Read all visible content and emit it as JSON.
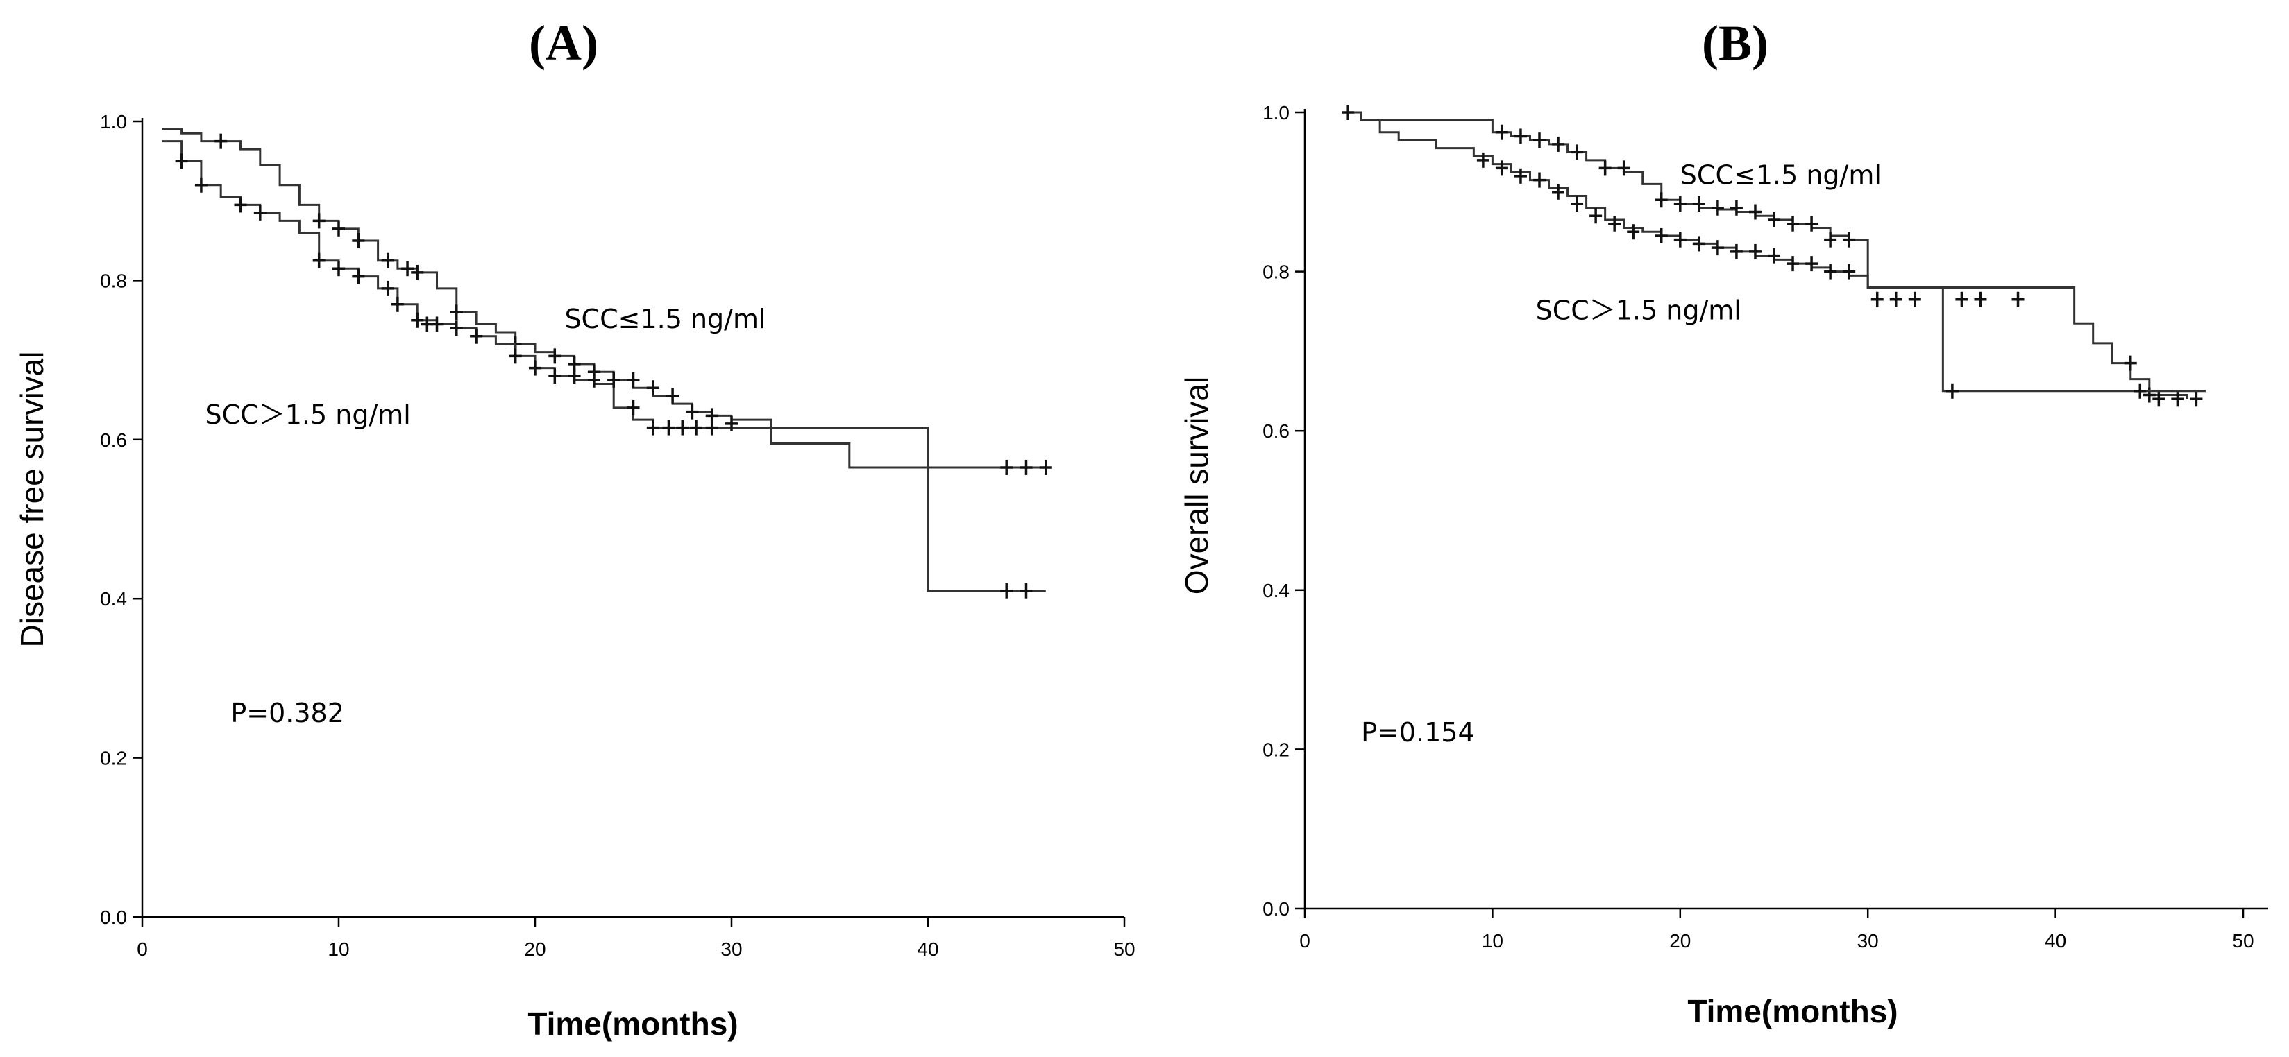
{
  "chart_data": [
    {
      "type": "line",
      "panel_label": "(A)",
      "xlabel": "Time(months)",
      "ylabel": "Disease free survival",
      "xlim": [
        0,
        50
      ],
      "ylim": [
        0,
        1.0
      ],
      "xticks": [
        0,
        10,
        20,
        30,
        40,
        50
      ],
      "yticks": [
        0.0,
        0.2,
        0.4,
        0.6,
        0.8,
        1.0
      ],
      "xtick_labels": [
        "0",
        "10",
        "20",
        "30",
        "40",
        "50"
      ],
      "ytick_labels": [
        "0.0",
        "0.2",
        "0.4",
        "0.6",
        "0.8",
        "1.0"
      ],
      "grid": false,
      "annotations": [
        {
          "text": "SCC≤1.5 ng/ml",
          "x": 21.5,
          "y": 0.74
        },
        {
          "text": "SCC＞1.5 ng/ml",
          "x": 3.2,
          "y": 0.62
        },
        {
          "text": "P=0.382",
          "x": 4.5,
          "y": 0.245
        }
      ],
      "series": [
        {
          "x": [
            1,
            2,
            3,
            5,
            6,
            7,
            8,
            9,
            10,
            11,
            12,
            13,
            14,
            15,
            16,
            17,
            18,
            19,
            20,
            21,
            22,
            23,
            24,
            25,
            26,
            27,
            28,
            29,
            30,
            32,
            36,
            40,
            46
          ],
          "y": [
            0.99,
            0.985,
            0.975,
            0.965,
            0.945,
            0.92,
            0.895,
            0.875,
            0.865,
            0.85,
            0.825,
            0.815,
            0.81,
            0.79,
            0.76,
            0.745,
            0.735,
            0.72,
            0.71,
            0.705,
            0.695,
            0.685,
            0.675,
            0.665,
            0.655,
            0.645,
            0.635,
            0.63,
            0.625,
            0.615,
            0.615,
            0.41,
            0.41
          ],
          "censored": [
            [
              4,
              0.975
            ],
            [
              9,
              0.875
            ],
            [
              10,
              0.865
            ],
            [
              11,
              0.85
            ],
            [
              12.5,
              0.825
            ],
            [
              13.5,
              0.815
            ],
            [
              14,
              0.81
            ],
            [
              16,
              0.76
            ],
            [
              19,
              0.72
            ],
            [
              21,
              0.705
            ],
            [
              22,
              0.695
            ],
            [
              23,
              0.685
            ],
            [
              24,
              0.675
            ],
            [
              25,
              0.675
            ],
            [
              26,
              0.665
            ],
            [
              27,
              0.655
            ],
            [
              28,
              0.635
            ],
            [
              29,
              0.63
            ],
            [
              44,
              0.41
            ],
            [
              45,
              0.41
            ]
          ]
        },
        {
          "x": [
            1,
            2,
            3,
            4,
            5,
            6,
            7,
            8,
            9,
            10,
            11,
            12,
            13,
            14,
            15,
            16,
            17,
            18,
            19,
            20,
            21,
            22,
            23,
            24,
            25,
            26,
            32,
            36,
            46
          ],
          "y": [
            0.975,
            0.95,
            0.92,
            0.905,
            0.895,
            0.885,
            0.875,
            0.86,
            0.825,
            0.815,
            0.805,
            0.79,
            0.77,
            0.75,
            0.745,
            0.74,
            0.73,
            0.72,
            0.705,
            0.69,
            0.68,
            0.675,
            0.67,
            0.64,
            0.625,
            0.615,
            0.595,
            0.565,
            0.565
          ],
          "censored": [
            [
              2,
              0.95
            ],
            [
              3,
              0.92
            ],
            [
              5,
              0.895
            ],
            [
              6,
              0.885
            ],
            [
              9,
              0.825
            ],
            [
              10,
              0.815
            ],
            [
              11,
              0.805
            ],
            [
              12.5,
              0.79
            ],
            [
              13,
              0.77
            ],
            [
              14,
              0.75
            ],
            [
              14.5,
              0.745
            ],
            [
              15,
              0.745
            ],
            [
              16,
              0.74
            ],
            [
              17,
              0.73
            ],
            [
              19,
              0.705
            ],
            [
              20,
              0.69
            ],
            [
              21,
              0.68
            ],
            [
              22,
              0.68
            ],
            [
              23,
              0.675
            ],
            [
              24,
              0.675
            ],
            [
              25,
              0.64
            ],
            [
              26,
              0.615
            ],
            [
              26.8,
              0.615
            ],
            [
              27.5,
              0.615
            ],
            [
              28.2,
              0.615
            ],
            [
              29,
              0.615
            ],
            [
              30,
              0.62
            ],
            [
              44,
              0.565
            ],
            [
              45,
              0.565
            ],
            [
              46,
              0.565
            ]
          ]
        }
      ]
    },
    {
      "type": "line",
      "panel_label": "(B)",
      "xlabel": "Time(months)",
      "ylabel": "Overall survival",
      "xlim": [
        0,
        50
      ],
      "ylim": [
        0,
        1.0
      ],
      "xticks": [
        0,
        10,
        20,
        30,
        40,
        50
      ],
      "yticks": [
        0.0,
        0.2,
        0.4,
        0.6,
        0.8,
        1.0
      ],
      "xtick_labels": [
        "0",
        "10",
        "20",
        "30",
        "40",
        "50"
      ],
      "ytick_labels": [
        "0.0",
        "0.2",
        "0.4",
        "0.6",
        "0.8",
        "1.0"
      ],
      "grid": false,
      "annotations": [
        {
          "text": "SCC≤1.5 ng/ml",
          "x": 20,
          "y": 0.91
        },
        {
          "text": "SCC＞1.5 ng/ml",
          "x": 12.3,
          "y": 0.74
        },
        {
          "text": "P=0.154",
          "x": 3,
          "y": 0.21
        }
      ],
      "series": [
        {
          "x": [
            2,
            3,
            10,
            11,
            12,
            13,
            14,
            15,
            16,
            17,
            18,
            19,
            20,
            21,
            22,
            23,
            24,
            25,
            26,
            27,
            28,
            29,
            30,
            41,
            42,
            43,
            44,
            45,
            47
          ],
          "y": [
            1.0,
            0.99,
            0.975,
            0.97,
            0.965,
            0.96,
            0.95,
            0.94,
            0.93,
            0.925,
            0.91,
            0.89,
            0.885,
            0.88,
            0.878,
            0.875,
            0.87,
            0.865,
            0.86,
            0.855,
            0.845,
            0.84,
            0.78,
            0.735,
            0.71,
            0.685,
            0.665,
            0.645,
            0.64
          ],
          "censored": [
            [
              10.5,
              0.975
            ],
            [
              11.5,
              0.97
            ],
            [
              12.5,
              0.965
            ],
            [
              13.5,
              0.96
            ],
            [
              14.5,
              0.95
            ],
            [
              16,
              0.93
            ],
            [
              17,
              0.93
            ],
            [
              19,
              0.89
            ],
            [
              20,
              0.885
            ],
            [
              21,
              0.885
            ],
            [
              22,
              0.88
            ],
            [
              23,
              0.88
            ],
            [
              24,
              0.875
            ],
            [
              25,
              0.865
            ],
            [
              26,
              0.86
            ],
            [
              27,
              0.86
            ],
            [
              28,
              0.84
            ],
            [
              29,
              0.84
            ],
            [
              30.5,
              0.765
            ],
            [
              31.5,
              0.765
            ],
            [
              32.5,
              0.765
            ],
            [
              35,
              0.765
            ],
            [
              36,
              0.765
            ],
            [
              38,
              0.765
            ],
            [
              44,
              0.685
            ],
            [
              45,
              0.645
            ],
            [
              45.5,
              0.64
            ],
            [
              46.5,
              0.64
            ],
            [
              47.5,
              0.64
            ]
          ]
        },
        {
          "x": [
            2,
            3,
            4,
            5,
            7,
            9,
            10,
            11,
            12,
            13,
            14,
            15,
            16,
            17,
            18,
            19,
            20,
            21,
            22,
            23,
            24,
            25,
            26,
            27,
            28,
            29,
            30,
            34,
            48
          ],
          "y": [
            1.0,
            0.99,
            0.975,
            0.965,
            0.955,
            0.945,
            0.935,
            0.925,
            0.915,
            0.905,
            0.895,
            0.88,
            0.865,
            0.855,
            0.85,
            0.845,
            0.84,
            0.835,
            0.83,
            0.825,
            0.82,
            0.815,
            0.81,
            0.805,
            0.8,
            0.795,
            0.78,
            0.65,
            0.65
          ],
          "censored": [
            [
              2.3,
              1.0
            ],
            [
              9.5,
              0.94
            ],
            [
              10.5,
              0.93
            ],
            [
              11.5,
              0.92
            ],
            [
              12.5,
              0.915
            ],
            [
              13.5,
              0.9
            ],
            [
              14.5,
              0.885
            ],
            [
              15.5,
              0.87
            ],
            [
              16.5,
              0.86
            ],
            [
              17.5,
              0.85
            ],
            [
              19,
              0.845
            ],
            [
              20,
              0.84
            ],
            [
              21,
              0.835
            ],
            [
              22,
              0.83
            ],
            [
              23,
              0.825
            ],
            [
              24,
              0.825
            ],
            [
              25,
              0.82
            ],
            [
              26,
              0.81
            ],
            [
              27,
              0.81
            ],
            [
              28,
              0.8
            ],
            [
              29,
              0.8
            ],
            [
              34.5,
              0.65
            ],
            [
              44.5,
              0.65
            ]
          ]
        }
      ]
    }
  ]
}
